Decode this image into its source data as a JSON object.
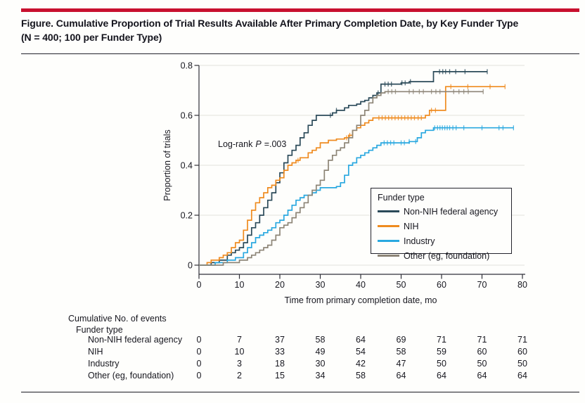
{
  "accent_color": "#c8102e",
  "header": {
    "title_line1": "Figure. Cumulative Proportion of Trial Results Available After Primary Completion Date, by Key Funder Type",
    "title_line2": "(N = 400; 100 per Funder Type)"
  },
  "chart_data": {
    "type": "line",
    "subtype": "step-cumulative-incidence",
    "title": "",
    "xlabel": "Time from primary completion date, mo",
    "ylabel": "Proportion of trials",
    "xlim": [
      0,
      80
    ],
    "ylim": [
      0,
      0.8
    ],
    "x_ticks": [
      0,
      10,
      20,
      30,
      40,
      50,
      60,
      70,
      80
    ],
    "y_ticks": [
      0,
      0.2,
      0.4,
      0.6,
      0.8
    ],
    "y_tick_labels": [
      "0",
      "0.2",
      "0.4",
      "0.6",
      "0.8"
    ],
    "grid": "horizontal-light",
    "annotation": {
      "text_before": "Log-rank",
      "p_symbol": "P",
      "text_after": "=.003"
    },
    "legend": {
      "title": "Funder type",
      "position": "inside-right"
    },
    "series": [
      {
        "name": "Non-NIH federal agency",
        "color": "#2b4a59",
        "points": [
          [
            0,
            0
          ],
          [
            3,
            0.01
          ],
          [
            5,
            0.02
          ],
          [
            7,
            0.04
          ],
          [
            8,
            0.05
          ],
          [
            9,
            0.06
          ],
          [
            10,
            0.07
          ],
          [
            11,
            0.09
          ],
          [
            12,
            0.12
          ],
          [
            13,
            0.15
          ],
          [
            14,
            0.17
          ],
          [
            15,
            0.2
          ],
          [
            16,
            0.23
          ],
          [
            17,
            0.26
          ],
          [
            18,
            0.29
          ],
          [
            19,
            0.33
          ],
          [
            20,
            0.37
          ],
          [
            21,
            0.41
          ],
          [
            22,
            0.44
          ],
          [
            23,
            0.46
          ],
          [
            24,
            0.48
          ],
          [
            25,
            0.51
          ],
          [
            26,
            0.53
          ],
          [
            27,
            0.56
          ],
          [
            28,
            0.58
          ],
          [
            29,
            0.6
          ],
          [
            33,
            0.61
          ],
          [
            34,
            0.62
          ],
          [
            36,
            0.63
          ],
          [
            37,
            0.64
          ],
          [
            39,
            0.645
          ],
          [
            40,
            0.655
          ],
          [
            41,
            0.66
          ],
          [
            42,
            0.67
          ],
          [
            43,
            0.68
          ],
          [
            44,
            0.69
          ],
          [
            45,
            0.725
          ],
          [
            50,
            0.73
          ],
          [
            52,
            0.735
          ],
          [
            58,
            0.775
          ],
          [
            71.3,
            0.775
          ]
        ],
        "censor_ticks": [
          32.5,
          34,
          44.3,
          46,
          46.8,
          47.6,
          50.2,
          51,
          52.3,
          59.5,
          60.3,
          61,
          62,
          63.5,
          65.8,
          71.3
        ]
      },
      {
        "name": "NIH",
        "color": "#ef8b1f",
        "points": [
          [
            0,
            0
          ],
          [
            2,
            0.01
          ],
          [
            3,
            0.02
          ],
          [
            5,
            0.03
          ],
          [
            6,
            0.04
          ],
          [
            7,
            0.05
          ],
          [
            8,
            0.07
          ],
          [
            9,
            0.09
          ],
          [
            10,
            0.1
          ],
          [
            11,
            0.14
          ],
          [
            12,
            0.18
          ],
          [
            13,
            0.22
          ],
          [
            14,
            0.25
          ],
          [
            15,
            0.27
          ],
          [
            16,
            0.29
          ],
          [
            17,
            0.31
          ],
          [
            18,
            0.32
          ],
          [
            19,
            0.34
          ],
          [
            20,
            0.35
          ],
          [
            21,
            0.38
          ],
          [
            22,
            0.4
          ],
          [
            23,
            0.41
          ],
          [
            24,
            0.42
          ],
          [
            25,
            0.43
          ],
          [
            27,
            0.45
          ],
          [
            28,
            0.46
          ],
          [
            29,
            0.47
          ],
          [
            30,
            0.49
          ],
          [
            32,
            0.5
          ],
          [
            34,
            0.505
          ],
          [
            36,
            0.51
          ],
          [
            37,
            0.52
          ],
          [
            38,
            0.54
          ],
          [
            39,
            0.55
          ],
          [
            40,
            0.56
          ],
          [
            41,
            0.57
          ],
          [
            42,
            0.58
          ],
          [
            43,
            0.59
          ],
          [
            56,
            0.6
          ],
          [
            57,
            0.62
          ],
          [
            61,
            0.715
          ],
          [
            75.7,
            0.715
          ]
        ],
        "censor_ticks": [
          24.5,
          36.5,
          37.3,
          44.5,
          45.3,
          46.1,
          46.9,
          47.7,
          48.5,
          49.3,
          50.1,
          50.9,
          51.7,
          52.5,
          53.3,
          54.2,
          55,
          57.5,
          58.5,
          62.3,
          66.5,
          72,
          75.7
        ]
      },
      {
        "name": "Industry",
        "color": "#29a8e0",
        "points": [
          [
            0,
            0
          ],
          [
            4,
            0.01
          ],
          [
            7,
            0.02
          ],
          [
            9,
            0.03
          ],
          [
            11,
            0.05
          ],
          [
            12,
            0.07
          ],
          [
            13,
            0.09
          ],
          [
            14,
            0.11
          ],
          [
            15,
            0.12
          ],
          [
            16,
            0.13
          ],
          [
            17,
            0.14
          ],
          [
            18,
            0.15
          ],
          [
            19,
            0.17
          ],
          [
            20,
            0.18
          ],
          [
            21,
            0.2
          ],
          [
            22,
            0.22
          ],
          [
            23,
            0.24
          ],
          [
            24,
            0.26
          ],
          [
            25,
            0.27
          ],
          [
            26,
            0.28
          ],
          [
            28,
            0.29
          ],
          [
            29,
            0.3
          ],
          [
            30,
            0.31
          ],
          [
            34,
            0.315
          ],
          [
            35,
            0.33
          ],
          [
            36,
            0.36
          ],
          [
            37,
            0.4
          ],
          [
            38,
            0.41
          ],
          [
            39,
            0.43
          ],
          [
            40,
            0.44
          ],
          [
            41,
            0.45
          ],
          [
            42,
            0.46
          ],
          [
            43,
            0.47
          ],
          [
            44,
            0.48
          ],
          [
            45,
            0.49
          ],
          [
            52,
            0.495
          ],
          [
            54,
            0.51
          ],
          [
            55,
            0.53
          ],
          [
            56,
            0.54
          ],
          [
            58,
            0.55
          ],
          [
            77.8,
            0.55
          ]
        ],
        "censor_ticks": [
          45.8,
          46.6,
          47.4,
          48.2,
          50,
          50.8,
          52,
          53.6,
          58.3,
          59,
          59.6,
          60.2,
          60.8,
          61.4,
          62,
          62.8,
          63.6,
          65.5,
          70,
          74.2,
          75.2,
          77.8
        ]
      },
      {
        "name": "Other (eg, foundation)",
        "color": "#8d8577",
        "points": [
          [
            0,
            0
          ],
          [
            6,
            0.01
          ],
          [
            10,
            0.02
          ],
          [
            12,
            0.03
          ],
          [
            13,
            0.04
          ],
          [
            14,
            0.05
          ],
          [
            15,
            0.06
          ],
          [
            16,
            0.07
          ],
          [
            17,
            0.08
          ],
          [
            18,
            0.1
          ],
          [
            19,
            0.12
          ],
          [
            20,
            0.15
          ],
          [
            21,
            0.16
          ],
          [
            22,
            0.17
          ],
          [
            23,
            0.19
          ],
          [
            24,
            0.21
          ],
          [
            25,
            0.23
          ],
          [
            26,
            0.25
          ],
          [
            27,
            0.28
          ],
          [
            28,
            0.3
          ],
          [
            29,
            0.32
          ],
          [
            30,
            0.34
          ],
          [
            31,
            0.38
          ],
          [
            32,
            0.42
          ],
          [
            33,
            0.44
          ],
          [
            34,
            0.46
          ],
          [
            35,
            0.47
          ],
          [
            36,
            0.49
          ],
          [
            37,
            0.51
          ],
          [
            38,
            0.54
          ],
          [
            39,
            0.56
          ],
          [
            40,
            0.6
          ],
          [
            41,
            0.62
          ],
          [
            42,
            0.65
          ],
          [
            43,
            0.67
          ],
          [
            44,
            0.68
          ],
          [
            45,
            0.69
          ],
          [
            46,
            0.695
          ],
          [
            70.3,
            0.695
          ]
        ],
        "censor_ticks": [
          46.8,
          47.7,
          48.6,
          52,
          53,
          54.5,
          55.5,
          57.5,
          58.6,
          59.6,
          63,
          64.3,
          65.5,
          66.6,
          70.3
        ]
      }
    ]
  },
  "events_table": {
    "title": "Cumulative No. of events",
    "subtitle": "Funder type",
    "time_points": [
      0,
      10,
      20,
      30,
      40,
      50,
      60,
      70,
      80
    ],
    "rows": [
      {
        "label": "Non-NIH federal agency",
        "values": [
          0,
          7,
          37,
          58,
          64,
          69,
          71,
          71,
          71
        ]
      },
      {
        "label": "NIH",
        "values": [
          0,
          10,
          33,
          49,
          54,
          58,
          59,
          60,
          60
        ]
      },
      {
        "label": "Industry",
        "values": [
          0,
          3,
          18,
          30,
          42,
          47,
          50,
          50,
          50
        ]
      },
      {
        "label": "Other (eg, foundation)",
        "values": [
          0,
          2,
          15,
          34,
          58,
          64,
          64,
          64,
          64
        ]
      }
    ]
  }
}
